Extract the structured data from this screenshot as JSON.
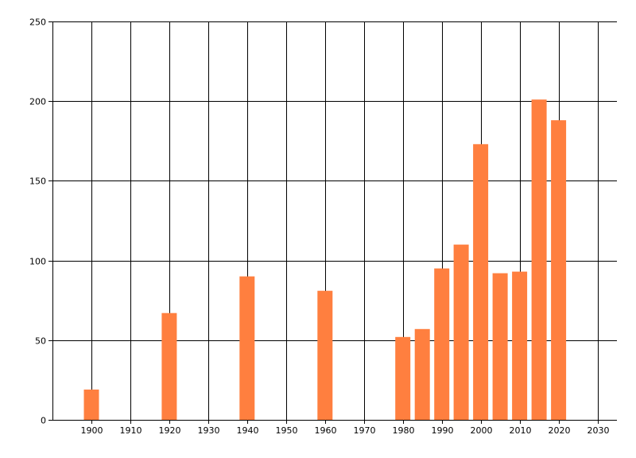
{
  "chart_data": {
    "type": "bar",
    "x": [
      1900,
      1920,
      1940,
      1960,
      1980,
      1985,
      1990,
      1995,
      2000,
      2005,
      2010,
      2015,
      2020
    ],
    "values": [
      19,
      67,
      90,
      81,
      52,
      57,
      95,
      110,
      173,
      92,
      93,
      201,
      188
    ],
    "xlim": [
      1890,
      2035
    ],
    "ylim": [
      0,
      250
    ],
    "x_ticks": [
      1900,
      1910,
      1920,
      1930,
      1940,
      1950,
      1960,
      1970,
      1980,
      1990,
      2000,
      2010,
      2020,
      2030
    ],
    "y_ticks": [
      0,
      50,
      100,
      150,
      200,
      250
    ],
    "grid": true,
    "legend": "none",
    "title": "",
    "xlabel": "",
    "ylabel": "",
    "bar_color": "#ff7f3f",
    "grid_color": "#000000"
  }
}
